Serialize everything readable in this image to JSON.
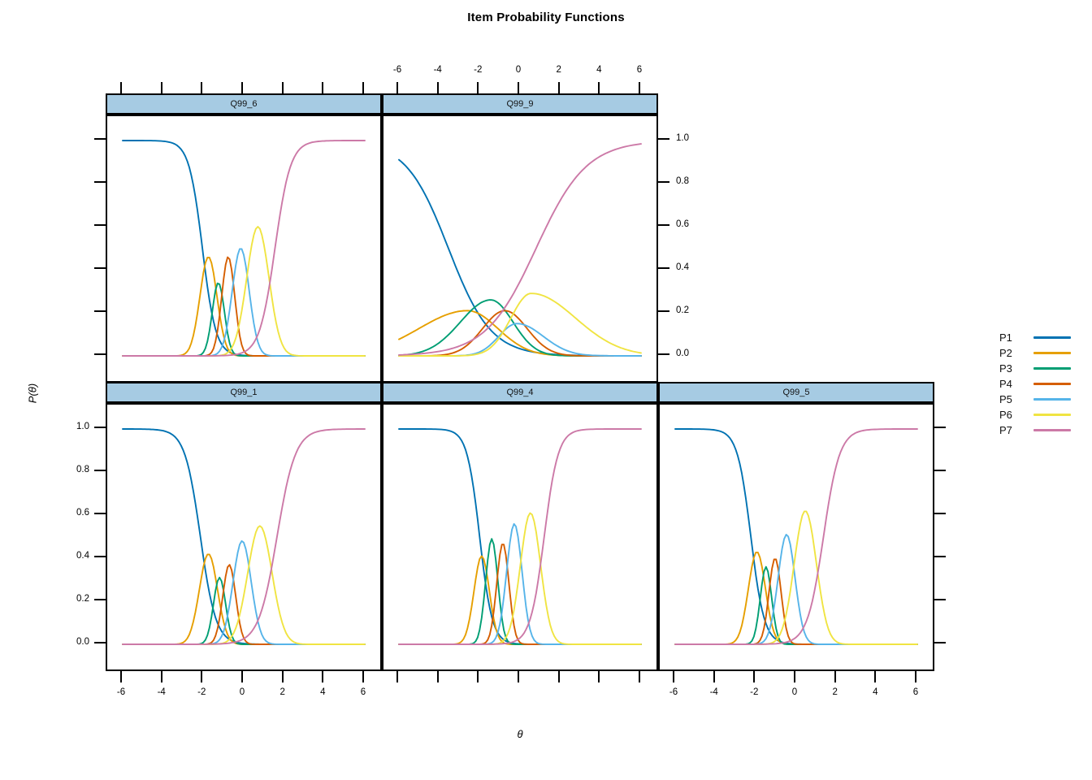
{
  "title": "Item Probability Functions",
  "chart_data": {
    "type": "line",
    "title": "Item Probability Functions",
    "xlabel": "θ",
    "ylabel": "P(θ)",
    "x_ticks": [
      -6,
      -4,
      -2,
      0,
      2,
      4,
      6
    ],
    "y_ticks": [
      1.0,
      0.8,
      0.6,
      0.4,
      0.2,
      0.0
    ],
    "theta_range": [
      -6,
      6
    ],
    "ylim": [
      0,
      1
    ],
    "grid": false,
    "strip_fill": "#a6cbe3",
    "legend": {
      "position": "right",
      "entries": [
        {
          "label": "P1",
          "color": "#0072B2"
        },
        {
          "label": "P2",
          "color": "#E69F00"
        },
        {
          "label": "P3",
          "color": "#009E73"
        },
        {
          "label": "P4",
          "color": "#D55E00"
        },
        {
          "label": "P5",
          "color": "#56B4E9"
        },
        {
          "label": "P6",
          "color": "#F0E442"
        },
        {
          "label": "P7",
          "color": "#CC79A7"
        }
      ]
    },
    "panels": [
      {
        "name": "Q99_6",
        "row": 0,
        "col": 0,
        "ticks": {
          "top": true,
          "bottom": false,
          "left": true,
          "right": false
        },
        "labels": {
          "top": false,
          "bottom": false,
          "left": false,
          "right": false
        },
        "series": [
          {
            "label": "P1",
            "kind": "logistic",
            "sign": -1,
            "a": 3.0,
            "c": -2.05
          },
          {
            "label": "P2",
            "kind": "bump",
            "peak": 0.46,
            "mean": -1.75,
            "sd": 0.42
          },
          {
            "label": "P3",
            "kind": "bump",
            "peak": 0.34,
            "mean": -1.26,
            "sd": 0.3
          },
          {
            "label": "P4",
            "kind": "bump",
            "peak": 0.46,
            "mean": -0.77,
            "sd": 0.32
          },
          {
            "label": "P5",
            "kind": "bump",
            "peak": 0.5,
            "mean": -0.15,
            "sd": 0.42
          },
          {
            "label": "P6",
            "kind": "bump",
            "peak": 0.6,
            "mean": 0.7,
            "sd": 0.55
          },
          {
            "label": "P7",
            "kind": "logistic",
            "sign": 1,
            "a": 2.6,
            "c": 1.55
          }
        ]
      },
      {
        "name": "Q99_9",
        "row": 0,
        "col": 1,
        "ticks": {
          "top": true,
          "bottom": false,
          "left": false,
          "right": true
        },
        "labels": {
          "top": true,
          "bottom": false,
          "left": false,
          "right": true
        },
        "series": [
          {
            "label": "P1",
            "kind": "logistic",
            "sign": -1,
            "a": 0.95,
            "c": -3.55
          },
          {
            "label": "P2",
            "kind": "bump",
            "peak": 0.21,
            "mean": -2.6,
            "sd": 2.4,
            "sd_right": 1.5
          },
          {
            "label": "P3",
            "kind": "bump",
            "peak": 0.26,
            "mean": -1.45,
            "sd": 1.5,
            "sd_right": 1.1
          },
          {
            "label": "P4",
            "kind": "bump",
            "peak": 0.21,
            "mean": -0.75,
            "sd": 1.1,
            "sd_right": 1.1
          },
          {
            "label": "P5",
            "kind": "bump",
            "peak": 0.15,
            "mean": -0.15,
            "sd": 0.9,
            "sd_right": 1.3
          },
          {
            "label": "P6",
            "kind": "bump",
            "peak": 0.29,
            "mean": 0.55,
            "sd": 1.0,
            "sd_right": 2.2
          },
          {
            "label": "P7",
            "kind": "logistic",
            "sign": 1,
            "a": 0.8,
            "c": 0.8
          }
        ]
      },
      {
        "name": "Q99_1",
        "row": 1,
        "col": 0,
        "ticks": {
          "top": false,
          "bottom": true,
          "left": true,
          "right": false
        },
        "labels": {
          "top": false,
          "bottom": true,
          "left": true,
          "right": false
        },
        "series": [
          {
            "label": "P1",
            "kind": "logistic",
            "sign": -1,
            "a": 2.6,
            "c": -2.15
          },
          {
            "label": "P2",
            "kind": "bump",
            "peak": 0.42,
            "mean": -1.75,
            "sd": 0.45
          },
          {
            "label": "P3",
            "kind": "bump",
            "peak": 0.31,
            "mean": -1.2,
            "sd": 0.3
          },
          {
            "label": "P4",
            "kind": "bump",
            "peak": 0.37,
            "mean": -0.72,
            "sd": 0.32
          },
          {
            "label": "P5",
            "kind": "bump",
            "peak": 0.48,
            "mean": -0.08,
            "sd": 0.45
          },
          {
            "label": "P6",
            "kind": "bump",
            "peak": 0.55,
            "mean": 0.8,
            "sd": 0.6
          },
          {
            "label": "P7",
            "kind": "logistic",
            "sign": 1,
            "a": 2.2,
            "c": 1.65
          }
        ]
      },
      {
        "name": "Q99_4",
        "row": 1,
        "col": 1,
        "ticks": {
          "top": false,
          "bottom": true,
          "left": false,
          "right": false
        },
        "labels": {
          "top": false,
          "bottom": false,
          "left": false,
          "right": false
        },
        "series": [
          {
            "label": "P1",
            "kind": "logistic",
            "sign": -1,
            "a": 3.2,
            "c": -2.0
          },
          {
            "label": "P2",
            "kind": "bump",
            "peak": 0.41,
            "mean": -1.9,
            "sd": 0.38
          },
          {
            "label": "P3",
            "kind": "bump",
            "peak": 0.49,
            "mean": -1.4,
            "sd": 0.3
          },
          {
            "label": "P4",
            "kind": "bump",
            "peak": 0.47,
            "mean": -0.85,
            "sd": 0.3
          },
          {
            "label": "P5",
            "kind": "bump",
            "peak": 0.56,
            "mean": -0.28,
            "sd": 0.38
          },
          {
            "label": "P6",
            "kind": "bump",
            "peak": 0.61,
            "mean": 0.52,
            "sd": 0.5
          },
          {
            "label": "P7",
            "kind": "logistic",
            "sign": 1,
            "a": 2.9,
            "c": 1.2
          }
        ]
      },
      {
        "name": "Q99_5",
        "row": 1,
        "col": 2,
        "ticks": {
          "top": false,
          "bottom": true,
          "left": false,
          "right": true
        },
        "labels": {
          "top": false,
          "bottom": true,
          "left": false,
          "right": false
        },
        "series": [
          {
            "label": "P1",
            "kind": "logistic",
            "sign": -1,
            "a": 3.0,
            "c": -2.25
          },
          {
            "label": "P2",
            "kind": "bump",
            "peak": 0.43,
            "mean": -1.95,
            "sd": 0.42
          },
          {
            "label": "P3",
            "kind": "bump",
            "peak": 0.36,
            "mean": -1.5,
            "sd": 0.28
          },
          {
            "label": "P4",
            "kind": "bump",
            "peak": 0.4,
            "mean": -1.05,
            "sd": 0.3
          },
          {
            "label": "P5",
            "kind": "bump",
            "peak": 0.51,
            "mean": -0.48,
            "sd": 0.42
          },
          {
            "label": "P6",
            "kind": "bump",
            "peak": 0.62,
            "mean": 0.45,
            "sd": 0.55
          },
          {
            "label": "P7",
            "kind": "logistic",
            "sign": 1,
            "a": 2.5,
            "c": 1.35
          }
        ]
      }
    ]
  }
}
